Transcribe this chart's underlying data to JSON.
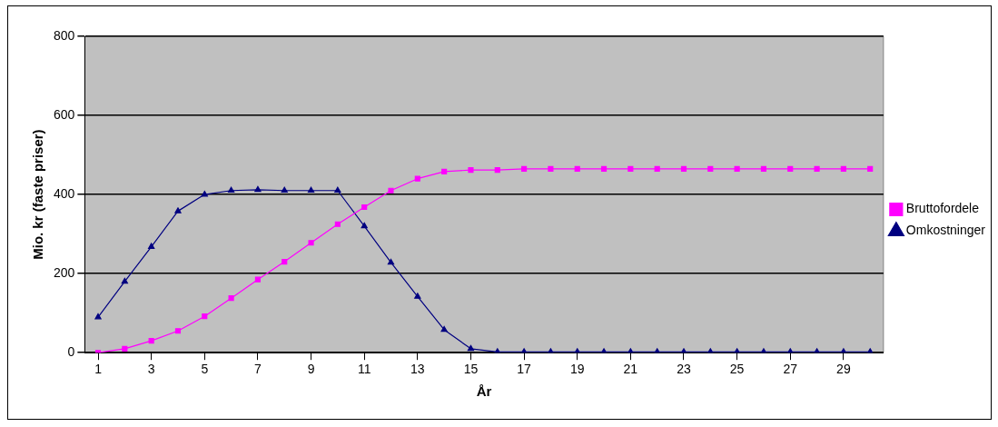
{
  "chart_data": {
    "type": "line",
    "xlabel": "År",
    "ylabel": "Mio. kr (faste priser)",
    "x": [
      1,
      2,
      3,
      4,
      5,
      6,
      7,
      8,
      9,
      10,
      11,
      12,
      13,
      14,
      15,
      16,
      17,
      18,
      19,
      20,
      21,
      22,
      23,
      24,
      25,
      26,
      27,
      28,
      29,
      30
    ],
    "xlim": [
      0.5,
      30.5
    ],
    "xticks": [
      1,
      3,
      5,
      7,
      9,
      11,
      13,
      15,
      17,
      19,
      21,
      23,
      25,
      27,
      29
    ],
    "series": [
      {
        "name": "Bruttofordele",
        "color": "#ff00ff",
        "marker": "square",
        "values": [
          0,
          10,
          30,
          55,
          92,
          138,
          185,
          230,
          278,
          325,
          368,
          410,
          440,
          458,
          462,
          462,
          465,
          465,
          465,
          465,
          465,
          465,
          465,
          465,
          465,
          465,
          465,
          465,
          465,
          465
        ]
      },
      {
        "name": "Omkostninger",
        "color": "#000080",
        "marker": "triangle",
        "values": [
          90,
          180,
          268,
          358,
          400,
          410,
          412,
          410,
          410,
          410,
          320,
          228,
          142,
          58,
          10,
          2,
          2,
          2,
          2,
          2,
          2,
          2,
          2,
          2,
          2,
          2,
          2,
          2,
          2,
          2
        ]
      }
    ],
    "ylim": [
      0,
      800
    ],
    "yticks": [
      0,
      200,
      400,
      600,
      800
    ],
    "grid": "y",
    "legend": "right"
  }
}
